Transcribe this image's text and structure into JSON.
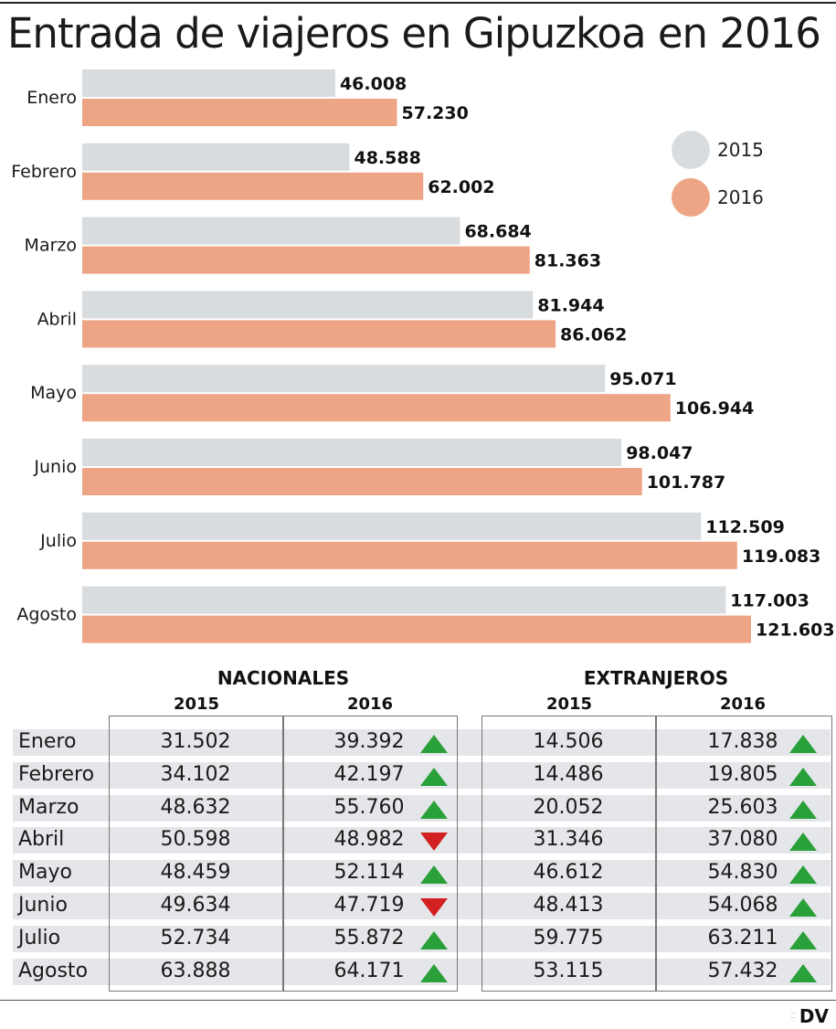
{
  "title": "Entrada de viajeros en Gipuzkoa en 2016",
  "legend": [
    {
      "label": "2015",
      "color": "#d9dcdf"
    },
    {
      "label": "2016",
      "color": "#eea585"
    }
  ],
  "chart_data": {
    "type": "bar",
    "orientation": "horizontal",
    "categories": [
      "Enero",
      "Febrero",
      "Marzo",
      "Abril",
      "Mayo",
      "Junio",
      "Julio",
      "Agosto"
    ],
    "series": [
      {
        "name": "2015",
        "color": "#d9dcdf",
        "values": [
          46008,
          48588,
          68684,
          81944,
          95071,
          98047,
          112509,
          117003
        ],
        "labels": [
          "46.008",
          "48.588",
          "68.684",
          "81.944",
          "95.071",
          "98.047",
          "112.509",
          "117.003"
        ]
      },
      {
        "name": "2016",
        "color": "#eea585",
        "values": [
          57230,
          62002,
          81363,
          86062,
          106944,
          101787,
          119083,
          121603
        ],
        "labels": [
          "57.230",
          "62.002",
          "81.363",
          "86.062",
          "106.944",
          "101.787",
          "119.083",
          "121.603"
        ]
      }
    ],
    "xlim": [
      0,
      121603
    ],
    "grid": false,
    "legend_position": "top-right"
  },
  "table": {
    "groups": [
      "NACIONALES",
      "EXTRANJEROS"
    ],
    "years": [
      "2015",
      "2016",
      "2015",
      "2016"
    ],
    "rows": [
      {
        "month": "Enero",
        "nac2015": "31.502",
        "nac2016": "39.392",
        "nac_trend": "up",
        "ext2015": "14.506",
        "ext2016": "17.838",
        "ext_trend": "up"
      },
      {
        "month": "Febrero",
        "nac2015": "34.102",
        "nac2016": "42.197",
        "nac_trend": "up",
        "ext2015": "14.486",
        "ext2016": "19.805",
        "ext_trend": "up"
      },
      {
        "month": "Marzo",
        "nac2015": "48.632",
        "nac2016": "55.760",
        "nac_trend": "up",
        "ext2015": "20.052",
        "ext2016": "25.603",
        "ext_trend": "up"
      },
      {
        "month": "Abril",
        "nac2015": "50.598",
        "nac2016": "48.982",
        "nac_trend": "down",
        "ext2015": "31.346",
        "ext2016": "37.080",
        "ext_trend": "up"
      },
      {
        "month": "Mayo",
        "nac2015": "48.459",
        "nac2016": "52.114",
        "nac_trend": "up",
        "ext2015": "46.612",
        "ext2016": "54.830",
        "ext_trend": "up"
      },
      {
        "month": "Junio",
        "nac2015": "49.634",
        "nac2016": "47.719",
        "nac_trend": "down",
        "ext2015": "48.413",
        "ext2016": "54.068",
        "ext_trend": "up"
      },
      {
        "month": "Julio",
        "nac2015": "52.734",
        "nac2016": "55.872",
        "nac_trend": "up",
        "ext2015": "59.775",
        "ext2016": "63.211",
        "ext_trend": "up"
      },
      {
        "month": "Agosto",
        "nac2015": "63.888",
        "nac2016": "64.171",
        "nac_trend": "up",
        "ext2015": "53.115",
        "ext2016": "57.432",
        "ext_trend": "up"
      }
    ]
  },
  "footer": {
    "brand": "DV"
  }
}
